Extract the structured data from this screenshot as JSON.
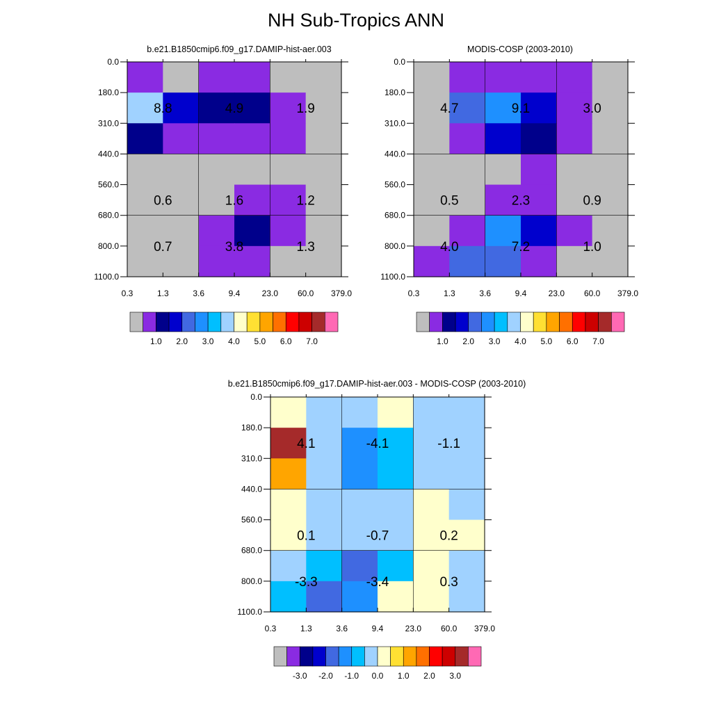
{
  "title": "NH Sub-Tropics ANN",
  "colors": {
    "grey": "#BEBEBE",
    "purple": "#8A2BE2",
    "navy": "#00008B",
    "blue": "#0000CD",
    "royal": "#4169E1",
    "dodger": "#1E90FF",
    "sky": "#00BFFF",
    "lightsky": "#A0D2FF",
    "cream": "#FFFFCC",
    "gold": "#FFE033",
    "orange": "#FFA500",
    "darkorange": "#FF7000",
    "red": "#FF0000",
    "crimson": "#CD0000",
    "brown": "#A52A2A",
    "pink": "#FF69B4"
  },
  "chart_data": [
    {
      "type": "heatmap",
      "title": "b.e21.B1850cmip6.f09_g17.DAMIP-hist-aer.003",
      "x_ticks": [
        "0.3",
        "1.3",
        "3.6",
        "9.4",
        "23.0",
        "60.0",
        "379.0"
      ],
      "y_ticks": [
        "0.0",
        "180.0",
        "310.0",
        "440.0",
        "560.0",
        "680.0",
        "800.0",
        "1100.0"
      ],
      "cells": [
        [
          "purple",
          "grey",
          "purple",
          "purple",
          "grey",
          "grey"
        ],
        [
          "lightsky",
          "blue",
          "navy",
          "navy",
          "purple",
          "grey"
        ],
        [
          "navy",
          "purple",
          "purple",
          "purple",
          "purple",
          "grey"
        ],
        [
          "grey",
          "grey",
          "grey",
          "grey",
          "grey",
          "grey"
        ],
        [
          "grey",
          "grey",
          "grey",
          "purple",
          "purple",
          "grey"
        ],
        [
          "grey",
          "grey",
          "purple",
          "navy",
          "purple",
          "grey"
        ],
        [
          "grey",
          "grey",
          "purple",
          "purple",
          "grey",
          "grey"
        ]
      ],
      "labels": [
        [
          "8.8",
          "4.9",
          "1.9"
        ],
        [
          "0.6",
          "1.6",
          "1.2"
        ],
        [
          "0.7",
          "3.8",
          "1.3"
        ]
      ],
      "colorbar": {
        "colors": [
          "grey",
          "purple",
          "navy",
          "blue",
          "royal",
          "dodger",
          "sky",
          "lightsky",
          "cream",
          "gold",
          "orange",
          "darkorange",
          "red",
          "crimson",
          "brown",
          "pink"
        ],
        "labels": [
          "1.0",
          "2.0",
          "3.0",
          "4.0",
          "5.0",
          "6.0",
          "7.0"
        ]
      }
    },
    {
      "type": "heatmap",
      "title": "MODIS-COSP (2003-2010)",
      "x_ticks": [
        "0.3",
        "1.3",
        "3.6",
        "9.4",
        "23.0",
        "60.0",
        "379.0"
      ],
      "y_ticks": [
        "0.0",
        "180.0",
        "310.0",
        "440.0",
        "560.0",
        "680.0",
        "800.0",
        "1100.0"
      ],
      "cells": [
        [
          "grey",
          "purple",
          "purple",
          "purple",
          "purple",
          "grey"
        ],
        [
          "grey",
          "royal",
          "dodger",
          "blue",
          "purple",
          "grey"
        ],
        [
          "grey",
          "purple",
          "blue",
          "navy",
          "purple",
          "grey"
        ],
        [
          "grey",
          "grey",
          "grey",
          "purple",
          "grey",
          "grey"
        ],
        [
          "grey",
          "grey",
          "purple",
          "purple",
          "grey",
          "grey"
        ],
        [
          "grey",
          "purple",
          "dodger",
          "blue",
          "purple",
          "grey"
        ],
        [
          "purple",
          "royal",
          "royal",
          "purple",
          "grey",
          "grey"
        ]
      ],
      "labels": [
        [
          "4.7",
          "9.1",
          "3.0"
        ],
        [
          "0.5",
          "2.3",
          "0.9"
        ],
        [
          "4.0",
          "7.2",
          "1.0"
        ]
      ],
      "colorbar": {
        "colors": [
          "grey",
          "purple",
          "navy",
          "blue",
          "royal",
          "dodger",
          "sky",
          "lightsky",
          "cream",
          "gold",
          "orange",
          "darkorange",
          "red",
          "crimson",
          "brown",
          "pink"
        ],
        "labels": [
          "1.0",
          "2.0",
          "3.0",
          "4.0",
          "5.0",
          "6.0",
          "7.0"
        ]
      }
    },
    {
      "type": "heatmap",
      "title": "b.e21.B1850cmip6.f09_g17.DAMIP-hist-aer.003 - MODIS-COSP (2003-2010)",
      "x_ticks": [
        "0.3",
        "1.3",
        "3.6",
        "9.4",
        "23.0",
        "60.0",
        "379.0"
      ],
      "y_ticks": [
        "0.0",
        "180.0",
        "310.0",
        "440.0",
        "560.0",
        "680.0",
        "800.0",
        "1100.0"
      ],
      "cells": [
        [
          "cream",
          "lightsky",
          "lightsky",
          "cream",
          "lightsky",
          "lightsky"
        ],
        [
          "brown",
          "lightsky",
          "dodger",
          "sky",
          "lightsky",
          "lightsky"
        ],
        [
          "orange",
          "lightsky",
          "dodger",
          "sky",
          "lightsky",
          "lightsky"
        ],
        [
          "cream",
          "lightsky",
          "lightsky",
          "lightsky",
          "cream",
          "lightsky"
        ],
        [
          "cream",
          "lightsky",
          "lightsky",
          "lightsky",
          "cream",
          "cream"
        ],
        [
          "lightsky",
          "sky",
          "royal",
          "sky",
          "cream",
          "lightsky"
        ],
        [
          "sky",
          "royal",
          "dodger",
          "cream",
          "cream",
          "lightsky"
        ]
      ],
      "labels": [
        [
          "4.1",
          "-4.1",
          "-1.1"
        ],
        [
          "0.1",
          "-0.7",
          "0.2"
        ],
        [
          "-3.3",
          "-3.4",
          "0.3"
        ]
      ],
      "colorbar": {
        "colors": [
          "grey",
          "purple",
          "navy",
          "blue",
          "royal",
          "dodger",
          "sky",
          "lightsky",
          "cream",
          "gold",
          "orange",
          "darkorange",
          "red",
          "crimson",
          "brown",
          "pink"
        ],
        "labels": [
          "-3.0",
          "-2.0",
          "-1.0",
          "0.0",
          "1.0",
          "2.0",
          "3.0"
        ]
      }
    }
  ]
}
